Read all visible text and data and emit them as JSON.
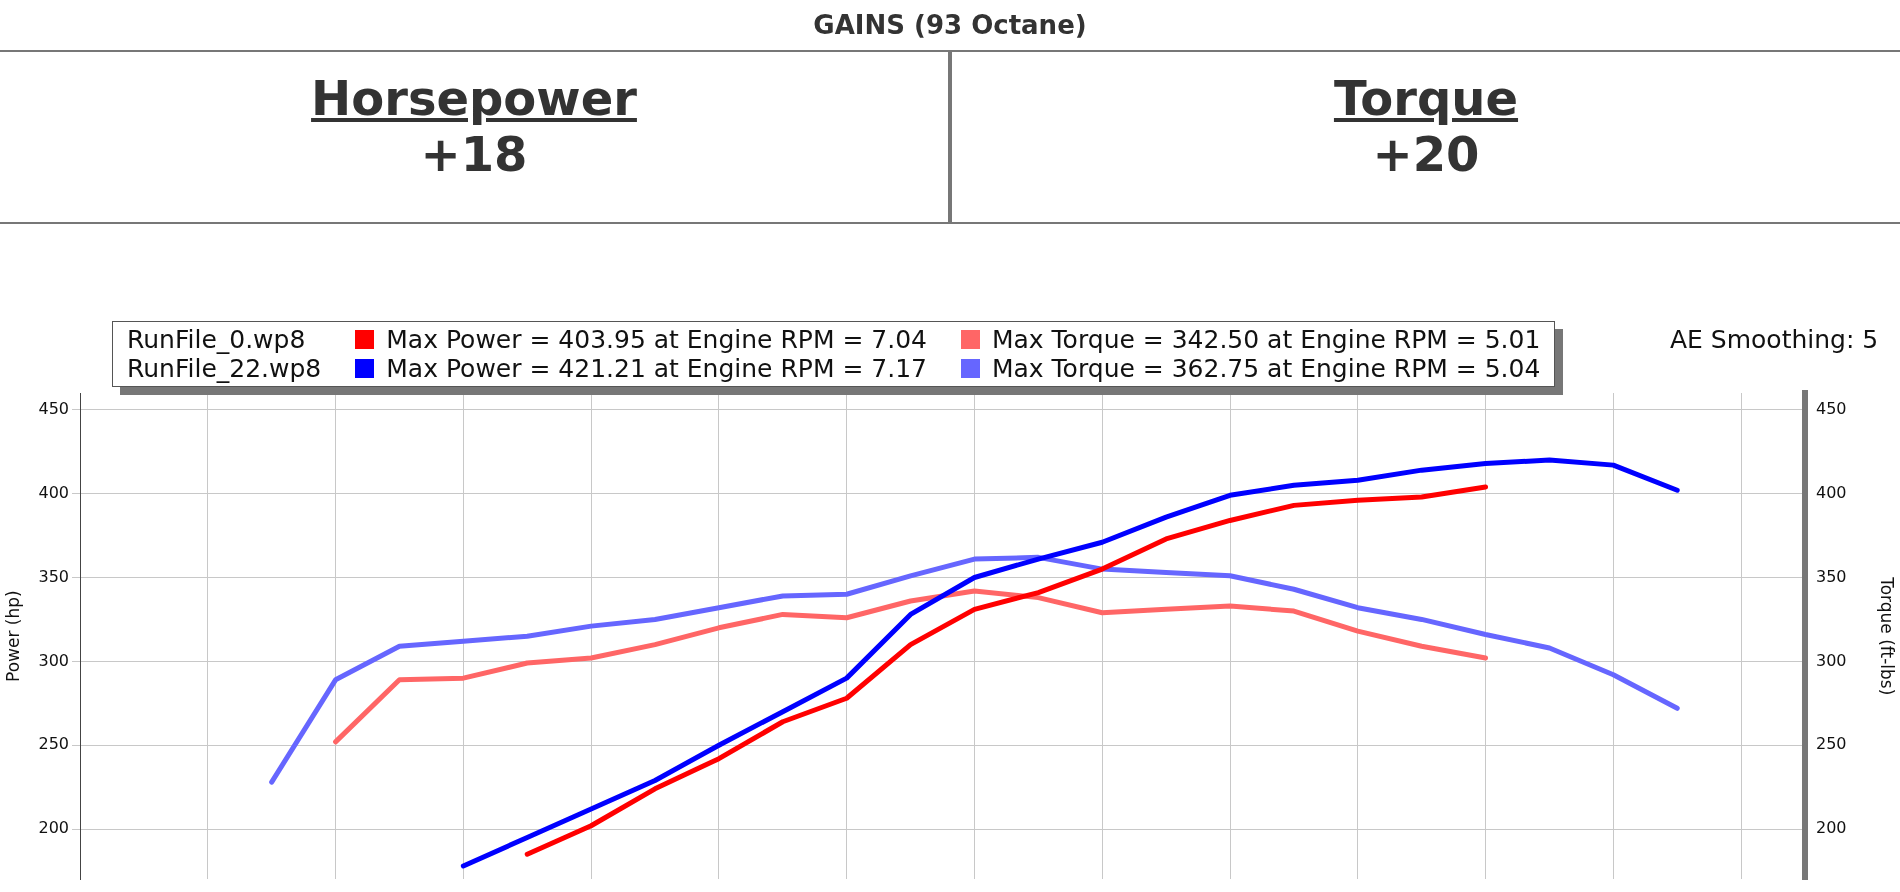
{
  "chart_data": {
    "type": "line",
    "title": "GAINS (93 Octane)",
    "ylabel": "Power (hp)",
    "y2label": "Torque (ft-lbs)",
    "annotations": [
      "Horsepower",
      "+18",
      "Torque",
      "+20",
      "RunFile_0.wp8",
      "RunFile_22.wp8",
      "AE Smoothing: 5"
    ],
    "categories": [
      null,
      null,
      null,
      null,
      null,
      null,
      null,
      null,
      null,
      null,
      null,
      null,
      null,
      null,
      null,
      null,
      null,
      null,
      null,
      null,
      null,
      null,
      null,
      null,
      null,
      null,
      null,
      null
    ],
    "series": [
      {
        "name": "Max Power = 403.95 at Engine RPM = 7.04",
        "color": "#ff0000",
        "values": [
          null,
          null,
          null,
          null,
          null,
          null,
          null,
          185,
          202,
          224,
          242,
          264,
          278,
          310,
          331,
          341,
          355,
          373,
          384,
          393,
          396,
          398,
          404,
          null,
          null,
          null,
          null,
          null
        ]
      },
      {
        "name": "Max Power = 421.21 at Engine RPM = 7.17",
        "color": "#0000ff",
        "values": [
          null,
          null,
          null,
          null,
          null,
          null,
          178,
          195,
          212,
          229,
          250,
          270,
          290,
          328,
          350,
          361,
          371,
          386,
          399,
          405,
          408,
          414,
          418,
          420,
          417,
          402,
          null,
          null
        ]
      },
      {
        "name": "Max Torque = 342.50 at Engine RPM = 5.01",
        "color": "#ff6666",
        "axis": "y2",
        "values": [
          null,
          null,
          null,
          null,
          252,
          289,
          290,
          299,
          302,
          310,
          320,
          328,
          326,
          336,
          342,
          338,
          329,
          331,
          333,
          330,
          318,
          309,
          302,
          null,
          null,
          null,
          null,
          null
        ]
      },
      {
        "name": "Max Torque = 362.75 at Engine RPM = 5.04",
        "color": "#6666ff",
        "axis": "y2",
        "values": [
          null,
          null,
          null,
          228,
          289,
          309,
          312,
          315,
          321,
          325,
          332,
          339,
          340,
          351,
          361,
          362,
          355,
          353,
          351,
          343,
          332,
          325,
          316,
          308,
          292,
          272,
          null,
          null
        ]
      }
    ],
    "ylim": [
      170,
      460
    ],
    "yticks": [
      200,
      250,
      300,
      350,
      400,
      450
    ],
    "y2lim": [
      170,
      460
    ],
    "y2ticks": [
      200,
      250,
      300,
      350,
      400,
      450
    ],
    "grid": true,
    "legend": "top",
    "line_style": "solid",
    "marker": "none",
    "tick_labels": "y"
  }
}
